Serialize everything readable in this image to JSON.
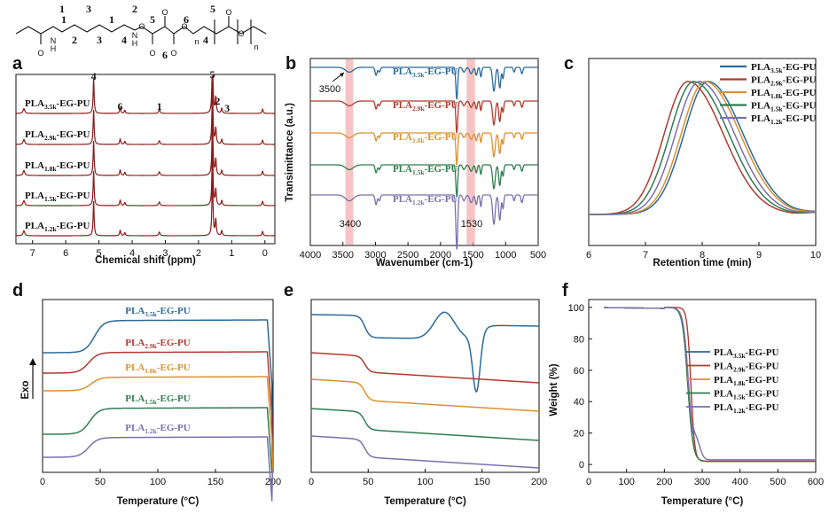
{
  "colors": {
    "PLA_3.5k": "#2a6a9a",
    "PLA_2.9k": "#b03a2e",
    "PLA_1.8k": "#d9912f",
    "PLA_1.5k": "#2e7d4f",
    "PLA_1.2k": "#7a70ad",
    "nmr": "#8b1a1a",
    "band": "#f3b0b0"
  },
  "samples": [
    {
      "key": "PLA_3.5k",
      "base": "PLA",
      "sub": "3.5k",
      "suffix": "-EG-PU"
    },
    {
      "key": "PLA_2.9k",
      "base": "PLA",
      "sub": "2.9k",
      "suffix": "-EG-PU"
    },
    {
      "key": "PLA_1.8k",
      "base": "PLA",
      "sub": "1.8k",
      "suffix": "-EG-PU"
    },
    {
      "key": "PLA_1.5k",
      "base": "PLA",
      "sub": "1.5k",
      "suffix": "-EG-PU"
    },
    {
      "key": "PLA_1.2k",
      "base": "PLA",
      "sub": "1.2k",
      "suffix": "-EG-PU"
    }
  ],
  "structure": {
    "numbers_top": [
      "1",
      "3",
      "2",
      "5"
    ],
    "numbers_bottom": [
      "1",
      "2",
      "3",
      "1",
      "4",
      "5",
      "6",
      "6",
      "4"
    ],
    "atoms": [
      "O",
      "N",
      "H",
      "N",
      "H",
      "O",
      "O",
      "O",
      "O",
      "O",
      "O",
      "O"
    ],
    "subscripts": [
      "n",
      "n"
    ]
  },
  "chart_data": [
    {
      "panel": "a",
      "type": "line",
      "xlabel": "Chemical shift (ppm)",
      "xlim": [
        7.5,
        -0.3
      ],
      "xticks": [
        7,
        6,
        5,
        4,
        3,
        2,
        1,
        0
      ],
      "peaks_ppm": [
        7.26,
        5.16,
        4.36,
        4.22,
        3.18,
        1.58,
        1.48,
        1.3,
        0.07
      ],
      "peak_labels": [
        {
          "label": "4",
          "ppm": 5.16
        },
        {
          "label": "6",
          "ppm": 4.36
        },
        {
          "label": "1",
          "ppm": 3.18
        },
        {
          "label": "5",
          "ppm": 1.58
        },
        {
          "label": "2",
          "ppm": 1.48
        },
        {
          "label": "3",
          "ppm": 1.3
        }
      ]
    },
    {
      "panel": "b",
      "type": "line",
      "xlabel": "Wavenumber (cm-1)",
      "ylabel": "Transimittance (a.u.)",
      "xlim": [
        4000,
        500
      ],
      "xticks": [
        4000,
        3500,
        3000,
        2500,
        2000,
        1500,
        1000,
        500
      ],
      "bands_cm": [
        3400,
        1530
      ],
      "annotations": [
        "3500",
        "3400",
        "1530"
      ],
      "absorptions_cm": [
        3400,
        2990,
        2940,
        1750,
        1640,
        1530,
        1450,
        1380,
        1180,
        1090,
        1040,
        870,
        750
      ]
    },
    {
      "panel": "c",
      "type": "line",
      "xlabel": "Retention time (min)",
      "xlim": [
        6,
        10
      ],
      "xticks": [
        6,
        7,
        8,
        9,
        10
      ],
      "peak_retention_min": {
        "PLA_3.5k": 8.1,
        "PLA_2.9k": 7.75,
        "PLA_1.8k": 8.05,
        "PLA_1.5k": 7.85,
        "PLA_1.2k": 7.95
      }
    },
    {
      "panel": "d",
      "type": "line",
      "xlabel": "Temperature (°C)",
      "ylabel": "Exo",
      "xlim": [
        0,
        200
      ],
      "xticks": [
        0,
        50,
        100,
        150,
        200
      ],
      "glass_transition_C": {
        "PLA_3.5k": 45,
        "PLA_2.9k": 40,
        "PLA_1.8k": 42,
        "PLA_1.5k": 41,
        "PLA_1.2k": 40
      }
    },
    {
      "panel": "e",
      "type": "line",
      "xlabel": "Temperature (°C)",
      "xlim": [
        0,
        200
      ],
      "xticks": [
        0,
        50,
        100,
        150,
        200
      ],
      "glass_transition_C": 47,
      "cold_crystallization_C": 117,
      "melting_C": 145
    },
    {
      "panel": "f",
      "type": "line",
      "xlabel": "Temperature (°C)",
      "ylabel": "Weight (%)",
      "xlim": [
        0,
        600
      ],
      "ylim": [
        -5,
        105
      ],
      "xticks": [
        0,
        100,
        200,
        300,
        400,
        500,
        600
      ],
      "yticks": [
        0,
        20,
        40,
        60,
        80,
        100
      ],
      "start_C": 40,
      "degradation_midpoint_C": {
        "PLA_3.5k": 262,
        "PLA_2.9k": 270,
        "PLA_1.8k": 262,
        "PLA_1.5k": 262,
        "PLA_1.2k": 264
      },
      "residue_pct": {
        "PLA_3.5k": 2,
        "PLA_2.9k": 2,
        "PLA_1.8k": 2,
        "PLA_1.5k": 2,
        "PLA_1.2k": 3
      }
    }
  ]
}
